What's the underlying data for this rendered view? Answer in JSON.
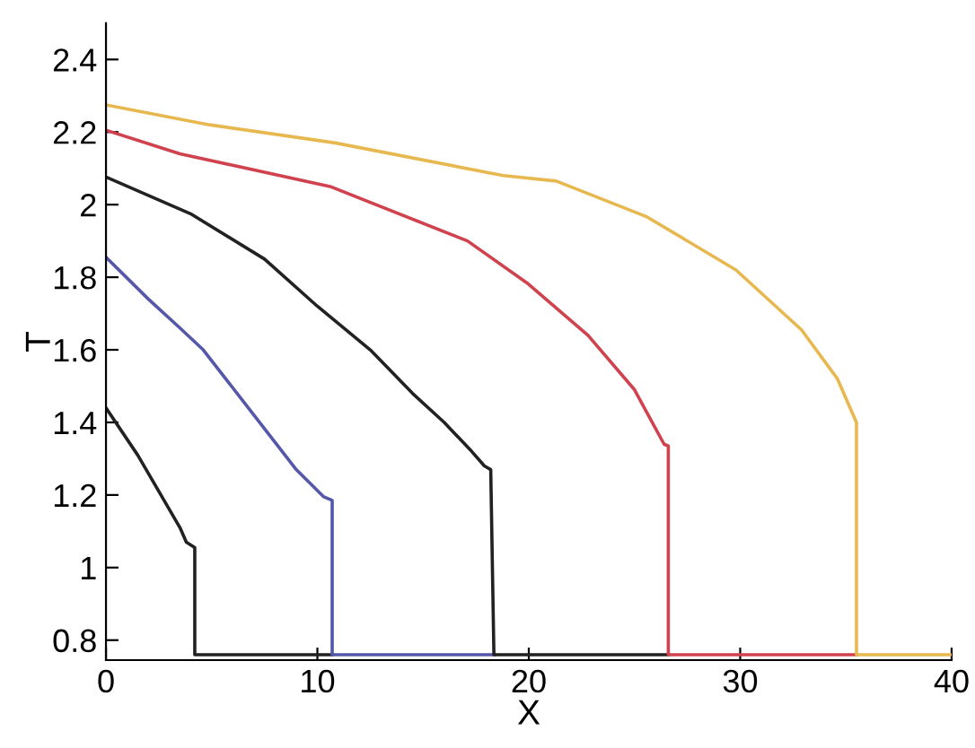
{
  "chart_data": {
    "type": "line",
    "xlabel": "X",
    "ylabel": "T",
    "xlim": [
      0,
      40
    ],
    "ylim": [
      0.745,
      2.5
    ],
    "xticks": [
      0,
      10,
      20,
      30,
      40
    ],
    "yticks": [
      0.8,
      {
        "value": 1,
        "label": "1"
      },
      1.2,
      1.4,
      1.6,
      1.8,
      {
        "value": 2,
        "label": "2"
      },
      2.2,
      2.4
    ],
    "grid": false,
    "legend": false,
    "marker": "none",
    "line_style": "solid",
    "series": [
      {
        "color": "#222222",
        "x": [
          0,
          1.5,
          3.5,
          3.8,
          4.2,
          4.2,
          10.7
        ],
        "values": [
          1.44,
          1.31,
          1.11,
          1.07,
          1.055,
          0.76,
          0.76
        ]
      },
      {
        "color": "#5558a8",
        "x": [
          0,
          2,
          3.5,
          4.6,
          7,
          9,
          10.3,
          10.7,
          10.7,
          18.35
        ],
        "values": [
          1.855,
          1.74,
          1.66,
          1.6,
          1.42,
          1.27,
          1.195,
          1.185,
          0.76,
          0.76
        ]
      },
      {
        "color": "#222222",
        "x": [
          0,
          4,
          7.5,
          10,
          12.5,
          14.5,
          16,
          17.3,
          17.9,
          18.2,
          18.35,
          26.6
        ],
        "values": [
          2.076,
          1.975,
          1.85,
          1.72,
          1.6,
          1.48,
          1.4,
          1.32,
          1.28,
          1.27,
          0.76,
          0.76
        ]
      },
      {
        "color": "#d0424e",
        "x": [
          0,
          3.5,
          10.6,
          17.1,
          19.9,
          22.8,
          25,
          26.4,
          26.6,
          26.6,
          35.5
        ],
        "values": [
          2.205,
          2.14,
          2.05,
          1.9,
          1.785,
          1.64,
          1.49,
          1.34,
          1.335,
          0.76,
          0.76
        ]
      },
      {
        "color": "#e8b850",
        "x": [
          0,
          4.9,
          10.85,
          18.8,
          21.3,
          25.6,
          29.8,
          32.9,
          34.6,
          35.5,
          35.5,
          40
        ],
        "values": [
          2.275,
          2.22,
          2.17,
          2.08,
          2.065,
          1.966,
          1.82,
          1.655,
          1.52,
          1.4,
          0.76,
          0.76
        ]
      }
    ]
  }
}
